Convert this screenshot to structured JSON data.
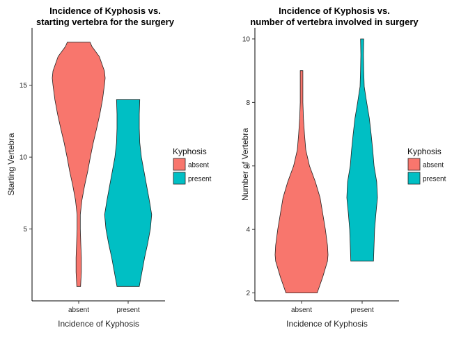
{
  "chart_data": [
    {
      "type": "violin",
      "title": "Incidence of Kyphosis vs.\nstarting vertebra for the surgery",
      "xlabel": "Incidence of Kyphosis",
      "ylabel": "Starting Vertebra",
      "categories": [
        "absent",
        "present"
      ],
      "ylim": [
        0,
        19
      ],
      "yticks": [
        5,
        10,
        15
      ],
      "grid": false,
      "legend": {
        "title": "Kyphosis",
        "position": "right",
        "entries": [
          "absent",
          "present"
        ]
      },
      "colors": {
        "absent": "#F8766D",
        "present": "#00BFC4"
      },
      "violins": [
        {
          "category": "absent",
          "width_by_y": [
            [
              1,
              0.07
            ],
            [
              2,
              0.1
            ],
            [
              3,
              0.1
            ],
            [
              4,
              0.08
            ],
            [
              5,
              0.06
            ],
            [
              6,
              0.06
            ],
            [
              7,
              0.12
            ],
            [
              8,
              0.22
            ],
            [
              9,
              0.34
            ],
            [
              10,
              0.44
            ],
            [
              11,
              0.55
            ],
            [
              12,
              0.68
            ],
            [
              13,
              0.8
            ],
            [
              14,
              0.9
            ],
            [
              15,
              0.97
            ],
            [
              15.5,
              1.0
            ],
            [
              16,
              0.97
            ],
            [
              17,
              0.78
            ],
            [
              17.7,
              0.5
            ],
            [
              18,
              0.43
            ]
          ]
        },
        {
          "category": "present",
          "width_by_y": [
            [
              1,
              0.42
            ],
            [
              2,
              0.52
            ],
            [
              3,
              0.62
            ],
            [
              4,
              0.74
            ],
            [
              5,
              0.84
            ],
            [
              6,
              0.89
            ],
            [
              7,
              0.8
            ],
            [
              8,
              0.7
            ],
            [
              9,
              0.6
            ],
            [
              10,
              0.5
            ],
            [
              11,
              0.44
            ],
            [
              12,
              0.42
            ],
            [
              13,
              0.42
            ],
            [
              14,
              0.44
            ]
          ]
        }
      ]
    },
    {
      "type": "violin",
      "title": "Incidence of Kyphosis vs.\nnumber of vertebra involved in surgery",
      "xlabel": "Incidence of Kyphosis",
      "ylabel": "Number of Vertebra",
      "categories": [
        "absent",
        "present"
      ],
      "ylim": [
        1.75,
        10.35
      ],
      "yticks": [
        2,
        4,
        6,
        8,
        10
      ],
      "grid": false,
      "legend": {
        "title": "Kyphosis",
        "position": "right",
        "entries": [
          "absent",
          "present"
        ]
      },
      "colors": {
        "absent": "#F8766D",
        "present": "#00BFC4"
      },
      "violins": [
        {
          "category": "absent",
          "width_by_y": [
            [
              2,
              0.59
            ],
            [
              2.5,
              0.8
            ],
            [
              3,
              0.98
            ],
            [
              3.2,
              1.0
            ],
            [
              3.5,
              0.98
            ],
            [
              4,
              0.9
            ],
            [
              4.5,
              0.8
            ],
            [
              5,
              0.7
            ],
            [
              5.5,
              0.52
            ],
            [
              6,
              0.3
            ],
            [
              6.5,
              0.16
            ],
            [
              7,
              0.11
            ],
            [
              7.5,
              0.07
            ],
            [
              8,
              0.05
            ],
            [
              8.3,
              0.05
            ],
            [
              8.7,
              0.05
            ],
            [
              9,
              0.05
            ]
          ]
        },
        {
          "category": "present",
          "width_by_y": [
            [
              3,
              0.43
            ],
            [
              3.5,
              0.45
            ],
            [
              4,
              0.47
            ],
            [
              4.5,
              0.52
            ],
            [
              5,
              0.58
            ],
            [
              5.5,
              0.55
            ],
            [
              6,
              0.45
            ],
            [
              6.5,
              0.4
            ],
            [
              7,
              0.34
            ],
            [
              7.5,
              0.27
            ],
            [
              8,
              0.17
            ],
            [
              8.5,
              0.08
            ],
            [
              9,
              0.06
            ],
            [
              9.5,
              0.05
            ],
            [
              10,
              0.06
            ]
          ]
        }
      ]
    }
  ]
}
